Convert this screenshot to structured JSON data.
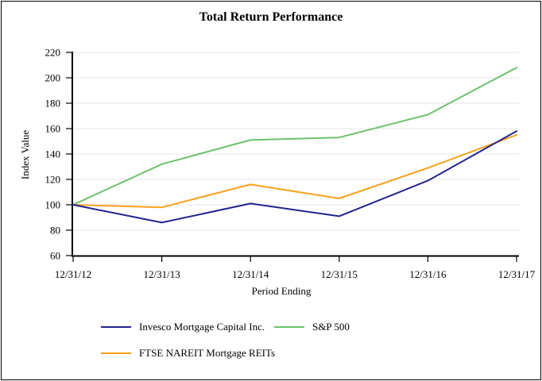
{
  "frame": {
    "background": "#FFFFFF",
    "border_color": "#000000"
  },
  "chart_data": {
    "type": "line",
    "title": "Total Return Performance",
    "xlabel": "Period Ending",
    "ylabel": "Index Value",
    "categories": [
      "12/31/12",
      "12/31/13",
      "12/31/14",
      "12/31/15",
      "12/31/16",
      "12/31/17"
    ],
    "y_ticks": [
      60,
      80,
      100,
      120,
      140,
      160,
      180,
      200,
      220
    ],
    "ylim": [
      60,
      220
    ],
    "grid": "horizontal",
    "legend_position": "below-two-rows",
    "series": [
      {
        "name": "Invesco Mortgage Capital Inc.",
        "color": "#23238E",
        "values": [
          100,
          86,
          101,
          91,
          119,
          158
        ]
      },
      {
        "name": "S&P 500",
        "color": "#6CC26C",
        "values": [
          100,
          132,
          151,
          153,
          171,
          208
        ]
      },
      {
        "name": "FTSE NAREIT Mortgage REITs",
        "color": "#F9A11B",
        "values": [
          100,
          98,
          116,
          105,
          129,
          155
        ]
      }
    ],
    "axis_color": "#000000",
    "gridline_color": "#E4E4E4",
    "text_color": "#000000"
  }
}
